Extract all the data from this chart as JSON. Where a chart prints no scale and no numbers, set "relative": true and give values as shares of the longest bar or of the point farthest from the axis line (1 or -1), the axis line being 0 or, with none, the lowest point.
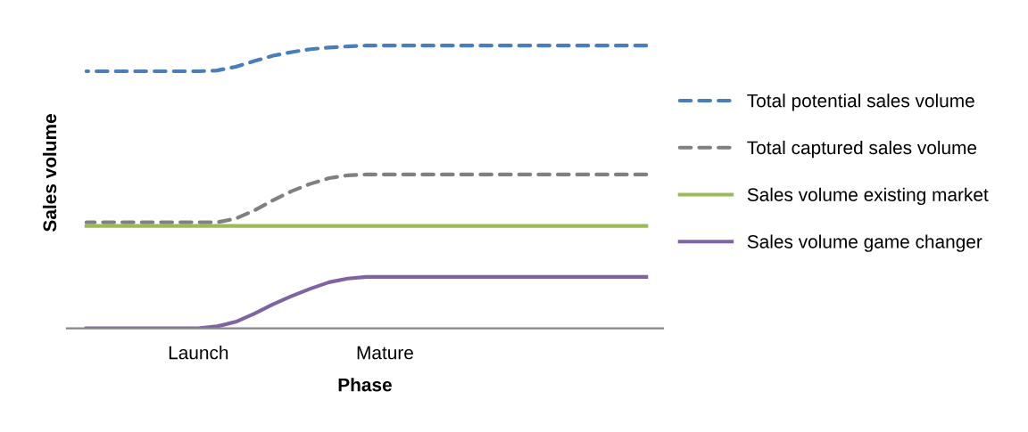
{
  "chart_data": {
    "type": "line",
    "relative": true,
    "xlabel": "Phase",
    "ylabel": "Sales volume",
    "legend": "right",
    "grid": false,
    "categories": [
      null,
      null,
      null,
      null,
      null,
      null,
      "Launch",
      null,
      null,
      null,
      null,
      null,
      null,
      null,
      null,
      null,
      "Mature",
      null,
      null,
      null,
      null,
      null,
      null,
      null,
      null,
      null,
      null,
      null,
      null,
      null,
      null
    ],
    "series": [
      {
        "name": "Total potential sales volume",
        "color": "#4a7ebb",
        "line_style": "dashed",
        "values": [
          0.909,
          0.909,
          0.909,
          0.909,
          0.909,
          0.909,
          0.909,
          0.912,
          0.925,
          0.945,
          0.964,
          0.977,
          0.987,
          0.993,
          0.997,
          1,
          1,
          1,
          1,
          1,
          1,
          1,
          1,
          1,
          1,
          1,
          1,
          1,
          1,
          1,
          1
        ]
      },
      {
        "name": "Total captured sales volume",
        "color": "#808080",
        "line_style": "dashed",
        "values": [
          0.375,
          0.375,
          0.375,
          0.375,
          0.375,
          0.375,
          0.375,
          0.375,
          0.388,
          0.417,
          0.453,
          0.485,
          0.511,
          0.531,
          0.541,
          0.544,
          0.544,
          0.544,
          0.544,
          0.544,
          0.544,
          0.544,
          0.544,
          0.544,
          0.544,
          0.544,
          0.544,
          0.544,
          0.544,
          0.544,
          0.544
        ]
      },
      {
        "name": "Sales volume existing market",
        "color": "#9bbb59",
        "line_style": "solid",
        "values": [
          0.362,
          0.362,
          0.362,
          0.362,
          0.362,
          0.362,
          0.362,
          0.362,
          0.362,
          0.362,
          0.362,
          0.362,
          0.362,
          0.362,
          0.362,
          0.362,
          0.362,
          0.362,
          0.362,
          0.362,
          0.362,
          0.362,
          0.362,
          0.362,
          0.362,
          0.362,
          0.362,
          0.362,
          0.362,
          0.362,
          0.362
        ]
      },
      {
        "name": "Sales volume game changer",
        "color": "#8064a2",
        "line_style": "solid",
        "values": [
          0,
          0,
          0,
          0,
          0,
          0,
          0,
          0.007,
          0.023,
          0.052,
          0.085,
          0.114,
          0.14,
          0.163,
          0.176,
          0.182,
          0.182,
          0.182,
          0.182,
          0.182,
          0.182,
          0.182,
          0.182,
          0.182,
          0.182,
          0.182,
          0.182,
          0.182,
          0.182,
          0.182,
          0.182
        ]
      }
    ]
  }
}
